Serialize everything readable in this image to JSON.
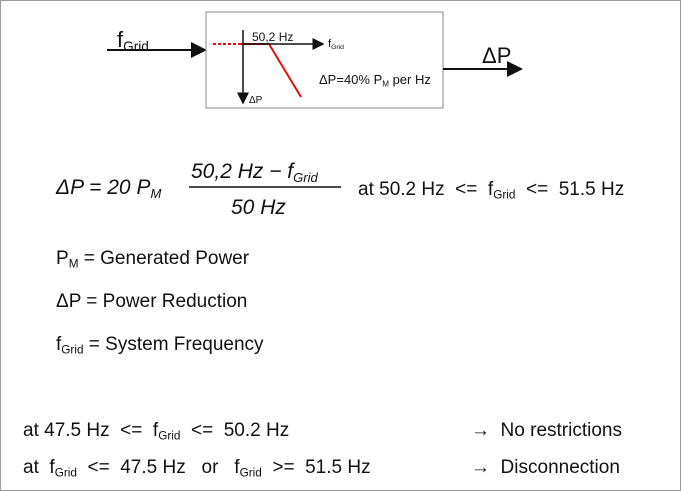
{
  "diagram": {
    "input_label": [
      {
        "text": "f",
        "sub": "Grid"
      }
    ],
    "output_label": [
      {
        "text": "ΔP"
      }
    ],
    "box": {
      "threshold": [
        {
          "text": "50,2 Hz"
        }
      ],
      "x_axis": [
        {
          "text": "f",
          "sub": "Grid"
        }
      ],
      "y_axis": [
        {
          "text": "ΔP"
        }
      ],
      "slope": [
        {
          "text": "ΔP=40% P",
          "sub": "M"
        },
        {
          "text": " per Hz"
        }
      ]
    }
  },
  "formula": {
    "lhs": [
      {
        "text": "ΔP = 20 P",
        "sub": "M"
      }
    ],
    "numerator": [
      {
        "text": "50,2 Hz − f",
        "sub": "Grid"
      }
    ],
    "denominator": [
      {
        "text": "50 Hz"
      }
    ],
    "condition": [
      {
        "text": "at 50.2 Hz  <=  f",
        "sub": "Grid"
      },
      {
        "text": "  <=  51.5 Hz"
      }
    ]
  },
  "definitions": [
    [
      {
        "text": "P",
        "sub": "M"
      },
      {
        "text": " = Generated Power"
      }
    ],
    [
      {
        "text": "ΔP = Power Reduction"
      }
    ],
    [
      {
        "text": "f",
        "sub": "Grid"
      },
      {
        "text": " = System Frequency"
      }
    ]
  ],
  "rules": [
    {
      "condition": [
        {
          "text": "at 47.5 Hz  <=  f",
          "sub": "Grid"
        },
        {
          "text": "  <=  50.2 Hz"
        }
      ],
      "result": [
        {
          "text": "→  No restrictions"
        }
      ]
    },
    {
      "condition": [
        {
          "text": "at  f",
          "sub": "Grid"
        },
        {
          "text": "  <=  47.5 Hz   or   f",
          "sub": "Grid"
        },
        {
          "text": "  >=  51.5 Hz"
        }
      ],
      "result": [
        {
          "text": "→  Disconnection"
        }
      ]
    }
  ]
}
